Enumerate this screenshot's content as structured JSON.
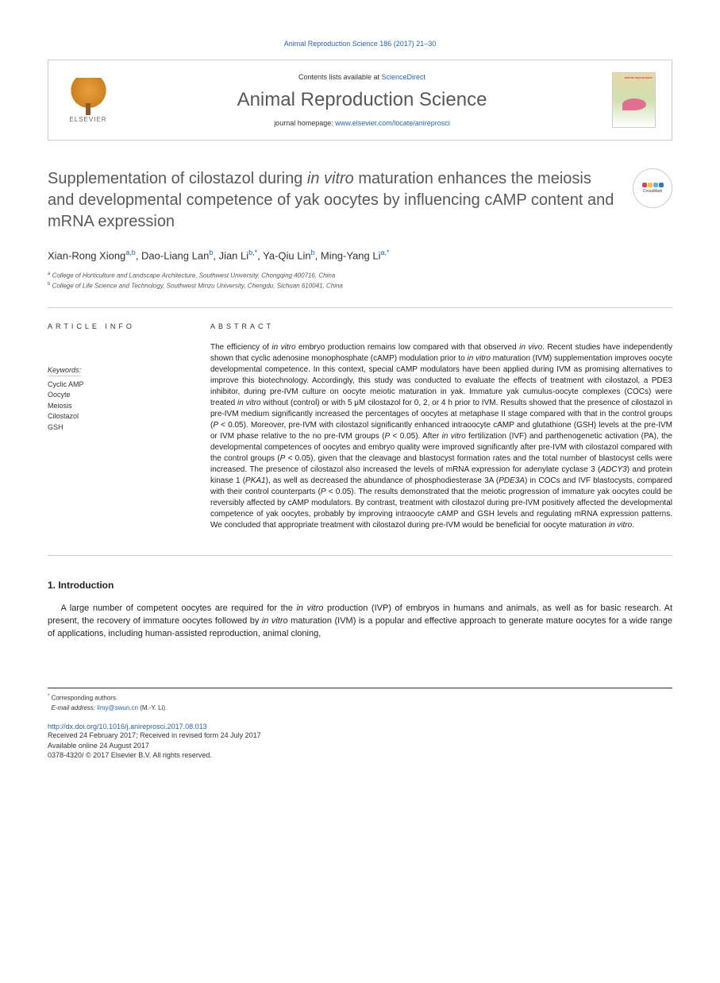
{
  "header": {
    "citation": "Animal Reproduction Science 186 (2017) 21–30",
    "contents_text": "Contents lists available at ",
    "contents_link": "ScienceDirect",
    "journal_name": "Animal Reproduction Science",
    "homepage_text": "journal homepage: ",
    "homepage_link": "www.elsevier.com/locate/anireprosci",
    "elsevier_label": "ELSEVIER",
    "cover_title": "animal reproduction"
  },
  "crossmark": {
    "label": "CrossMark",
    "colors": [
      "#d9455f",
      "#f6c23e",
      "#5eb5e0",
      "#3476c5"
    ]
  },
  "article": {
    "title_html": "Supplementation of cilostazol during <em>in vitro</em> maturation enhances the meiosis and developmental competence of yak oocytes by influencing cAMP content and mRNA expression",
    "authors_html": "Xian-Rong Xiong<span class='sup'>a,b</span>, Dao-Liang Lan<span class='sup'>b</span>, Jian Li<span class='sup'>b,*</span>, Ya-Qiu Lin<span class='sup'>b</span>, Ming-Yang Li<span class='sup'>a,*</span>",
    "affiliations": [
      {
        "sup": "a",
        "text": "College of Horticulture and Landscape Architecture, Southwest University, Chongqing 400716, China"
      },
      {
        "sup": "b",
        "text": "College of Life Science and Technology, Southwest Minzu University, Chengdu, Sichuan 610041, China"
      }
    ]
  },
  "keywords": {
    "label": "Keywords:",
    "items": [
      "Cyclic AMP",
      "Oocyte",
      "Meiosis",
      "Cilostazol",
      "GSH"
    ]
  },
  "section_headers": {
    "article_info": "ARTICLE INFO",
    "abstract": "ABSTRACT"
  },
  "abstract_html": "The efficiency of <em>in vitro</em> embryo production remains low compared with that observed <em>in vivo</em>. Recent studies have independently shown that cyclic adenosine monophosphate (cAMP) modulation prior to <em>in vitro</em> maturation (IVM) supplementation improves oocyte developmental competence. In this context, special cAMP modulators have been applied during IVM as promising alternatives to improve this biotechnology. Accordingly, this study was conducted to evaluate the effects of treatment with cilostazol, a PDE3 inhibitor, during pre-IVM culture on oocyte meiotic maturation in yak. Immature yak cumulus-oocyte complexes (COCs) were treated <em>in vitro</em> without (control) or with 5 μM cilostazol for 0, 2, or 4 h prior to IVM. Results showed that the presence of cilostazol in pre-IVM medium significantly increased the percentages of oocytes at metaphase II stage compared with that in the control groups (<em>P</em> < 0.05). Moreover, pre-IVM with cilostazol significantly enhanced intraoocyte cAMP and glutathione (GSH) levels at the pre-IVM or IVM phase relative to the no pre-IVM groups (<em>P</em> < 0.05). After <em>in vitro</em> fertilization (IVF) and parthenogenetic activation (PA), the developmental competences of oocytes and embryo quality were improved significantly after pre-IVM with cilostazol compared with the control groups (<em>P</em> < 0.05), given that the cleavage and blastocyst formation rates and the total number of blastocyst cells were increased. The presence of cilostazol also increased the levels of mRNA expression for adenylate cyclase 3 (<em>ADCY3</em>) and protein kinase 1 (<em>PKA1</em>), as well as decreased the abundance of phosphodiesterase 3A (<em>PDE3A</em>) in COCs and IVF blastocysts, compared with their control counterparts (<em>P</em> < 0.05). The results demonstrated that the meiotic progression of immature yak oocytes could be reversibly affected by cAMP modulators. By contrast, treatment with cilostazol during pre-IVM positively affected the developmental competence of yak oocytes, probably by improving intraoocyte cAMP and GSH levels and regulating mRNA expression patterns. We concluded that appropriate treatment with cilostazol during pre-IVM would be beneficial for oocyte maturation <em>in vitro</em>.",
  "intro": {
    "header": "1. Introduction",
    "text_html": "A large number of competent oocytes are required for the <em>in vitro</em> production (IVP) of embryos in humans and animals, as well as for basic research. At present, the recovery of immature oocytes followed by <em>in vitro</em> maturation (IVM) is a popular and effective approach to generate mature oocytes for a wide range of applications, including human-assisted reproduction, animal cloning,"
  },
  "footer": {
    "corresponding": "Corresponding authors.",
    "email_label": "E-mail address:",
    "email": "limy@swun.cn",
    "email_name": "(M.-Y. Li).",
    "doi": "http://dx.doi.org/10.1016/j.anireprosci.2017.08.013",
    "received": "Received 24 February 2017; Received in revised form 24 July 2017",
    "available": "Available online 24 August 2017",
    "issn": "0378-4320/ © 2017 Elsevier B.V. All rights reserved."
  },
  "colors": {
    "link": "#2864a8",
    "title_gray": "#595959",
    "text": "#222222",
    "border": "#cccccc"
  },
  "typography": {
    "body_font": "Arial, sans-serif",
    "title_fontsize": 20,
    "journal_name_fontsize": 24,
    "abstract_fontsize": 10,
    "intro_fontsize": 11
  }
}
